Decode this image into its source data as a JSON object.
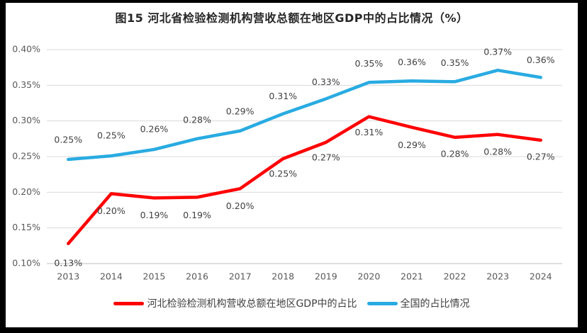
{
  "chart_data": {
    "type": "line",
    "title": "图15 河北省检验检测机构营收总额在地区GDP中的占比情况（%）",
    "categories": [
      "2013",
      "2014",
      "2015",
      "2016",
      "2017",
      "2018",
      "2019",
      "2020",
      "2021",
      "2022",
      "2023",
      "2024"
    ],
    "xlabel": "",
    "ylabel": "",
    "unit": "%",
    "grid": true,
    "legend_position": "bottom",
    "y_axis": {
      "min": 0.1,
      "max": 0.4,
      "step": 0.05,
      "tick_values": [
        0.1,
        0.15,
        0.2,
        0.25,
        0.3,
        0.35,
        0.4
      ],
      "tick_labels": [
        "0.10%",
        "0.15%",
        "0.20%",
        "0.25%",
        "0.30%",
        "0.35%",
        "0.40%"
      ]
    },
    "series": [
      {
        "name": "河北检验检测机构营收总额在地区GDP中的占比",
        "color": "#fe0000",
        "values": [
          0.128,
          0.198,
          0.192,
          0.193,
          0.205,
          0.247,
          0.27,
          0.306,
          0.291,
          0.277,
          0.281,
          0.273
        ],
        "labels": [
          "0.13%",
          "0.20%",
          "0.19%",
          "0.19%",
          "0.20%",
          "0.25%",
          "0.27%",
          "0.31%",
          "0.29%",
          "0.28%",
          "0.28%",
          "0.27%"
        ],
        "label_dy": [
          28,
          25,
          25,
          26,
          25,
          22,
          22,
          23,
          26,
          24,
          25,
          24
        ]
      },
      {
        "name": "全国的占比情况",
        "color": "#29abe2",
        "values": [
          0.246,
          0.251,
          0.26,
          0.275,
          0.286,
          0.31,
          0.331,
          0.354,
          0.356,
          0.355,
          0.371,
          0.361
        ],
        "labels": [
          "0.25%",
          "0.25%",
          "0.26%",
          "0.28%",
          "0.29%",
          "0.31%",
          "0.33%",
          "0.35%",
          "0.36%",
          "0.35%",
          "0.37%",
          "0.36%"
        ],
        "label_dy": [
          -27,
          -28,
          -28,
          -26,
          -27,
          -24,
          -23,
          -26,
          -26,
          -26,
          -25,
          -24
        ]
      }
    ],
    "colors": {
      "gridline": "#d9d9d9",
      "axis_line": "#bfbfbf",
      "axis_text": "#595959",
      "data_label_text": "#404040",
      "frame": "#000000",
      "background": "#ffffff"
    }
  }
}
